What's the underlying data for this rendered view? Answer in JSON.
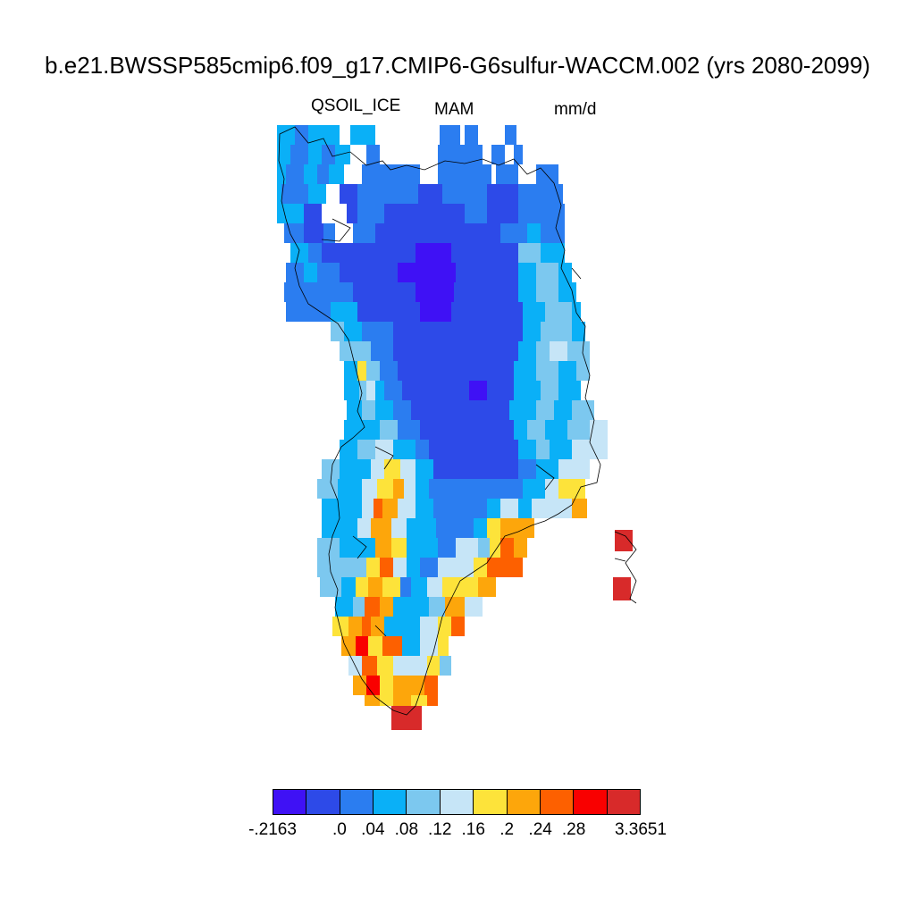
{
  "title": "b.e21.BWSSP585cmip6.f09_g17.CMIP6-G6sulfur-WACCM.002 (yrs 2080-2099)",
  "variable": "QSOIL_ICE",
  "season": "MAM",
  "units": "mm/d",
  "colorbar": {
    "colors": [
      "#3f11f5",
      "#2d4ae8",
      "#2b7df0",
      "#0ab0f7",
      "#7cc8ef",
      "#c6e5f7",
      "#fde33a",
      "#fda60b",
      "#fd6000",
      "#f90000",
      "#d82a2a"
    ],
    "labels": [
      {
        "text": "-.2163",
        "boundary": 0
      },
      {
        "text": ".0",
        "boundary": 2
      },
      {
        "text": ".04",
        "boundary": 3
      },
      {
        "text": ".08",
        "boundary": 4
      },
      {
        "text": ".12",
        "boundary": 5
      },
      {
        "text": ".16",
        "boundary": 6
      },
      {
        "text": ".2",
        "boundary": 7
      },
      {
        "text": ".24",
        "boundary": 8
      },
      {
        "text": ".28",
        "boundary": 9
      },
      {
        "text": "3.3651",
        "boundary": 11
      }
    ]
  }
}
